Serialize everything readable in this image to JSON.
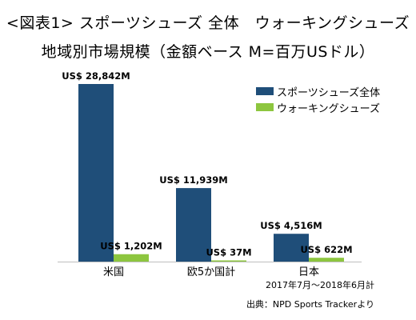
{
  "title_line1": "<図表1> スポーツシューズ 全体　ウォーキングシューズ",
  "title_line2": "地域別市場規模（金額ベース M=百万USドル）",
  "period": "2017年7月～2018年6月計",
  "source": "出典：NPD Sports Trackerより",
  "colors": {
    "sports": "#1f4e79",
    "walking": "#8dc63f",
    "axis": "#bfbfbf"
  },
  "chart_data": {
    "type": "bar",
    "categories": [
      "米国",
      "欧5か国計",
      "日本"
    ],
    "series": [
      {
        "name": "スポーツシューズ全体",
        "values": [
          28842,
          11939,
          4516
        ],
        "labels": [
          "US$ 28,842M",
          "US$ 11,939M",
          "US$ 4,516M"
        ]
      },
      {
        "name": "ウォーキングシューズ",
        "values": [
          1202,
          37,
          622
        ],
        "labels": [
          "US$ 1,202M",
          "US$ 37M",
          "US$ 622M"
        ]
      }
    ],
    "ylim": [
      0,
      28842
    ],
    "grid": false,
    "legend_position": "top-right"
  }
}
